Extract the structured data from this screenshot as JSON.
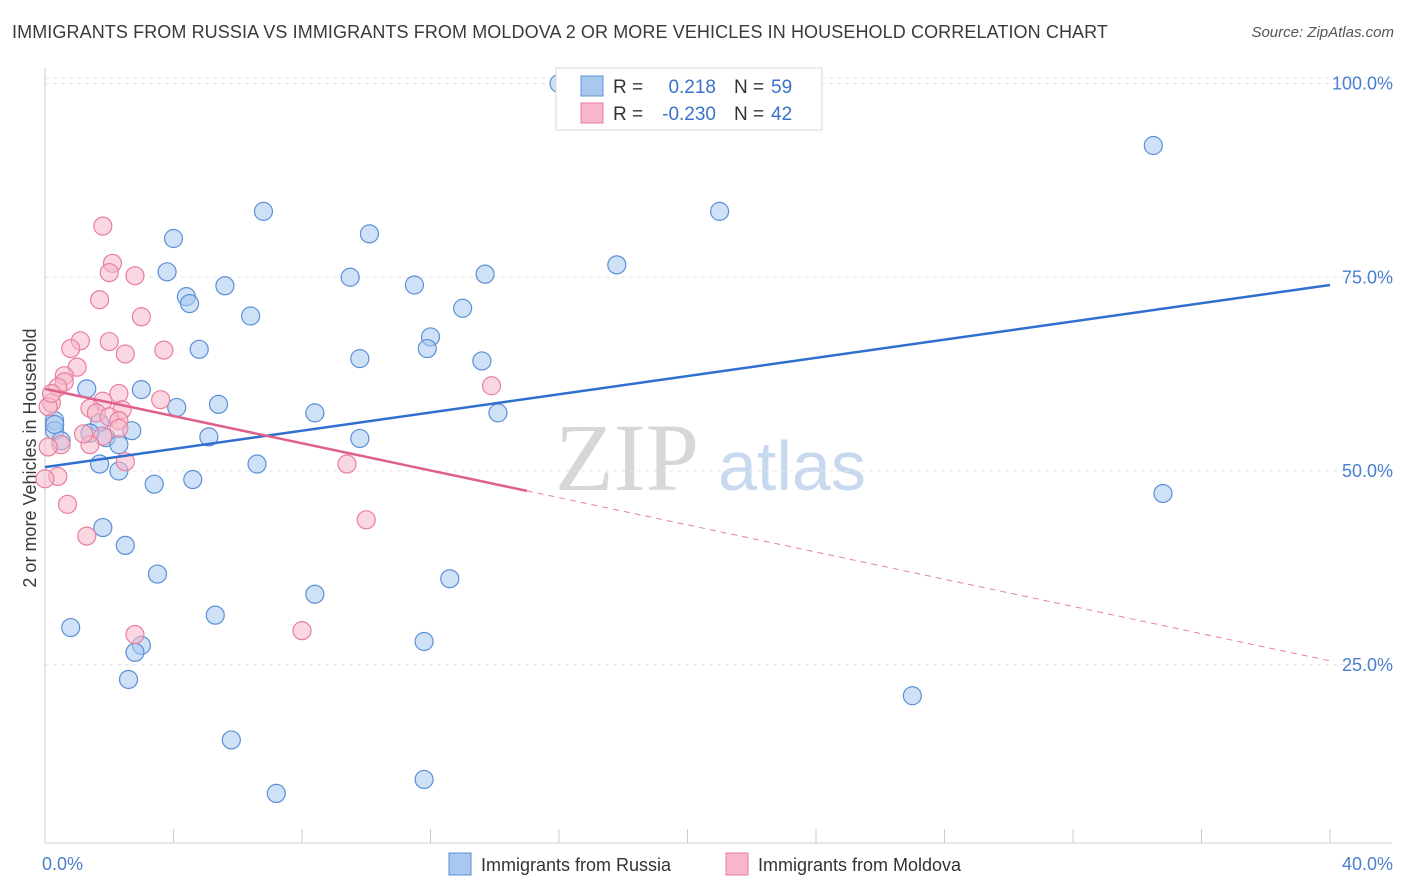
{
  "header": {
    "title": "IMMIGRANTS FROM RUSSIA VS IMMIGRANTS FROM MOLDOVA 2 OR MORE VEHICLES IN HOUSEHOLD CORRELATION CHART",
    "source": "Source: ZipAtlas.com"
  },
  "colors": {
    "russia_fill": "#a8c8f0",
    "russia_stroke": "#5b8fd6",
    "russia_line": "#2f6fcf",
    "moldova_fill": "#f7b6c9",
    "moldova_stroke": "#e77fa0",
    "moldova_line": "#e0608c"
  },
  "watermark": {
    "zip": "ZIP",
    "atlas": "atlas"
  },
  "legend": {
    "russia": {
      "r_label": "R =",
      "r_value": "0.218",
      "n_label": "N =",
      "n_value": "59"
    },
    "moldova": {
      "r_label": "R =",
      "r_value": "-0.230",
      "n_label": "N =",
      "n_value": "42"
    }
  },
  "chart_data": {
    "type": "scatter",
    "title": "IMMIGRANTS FROM RUSSIA VS IMMIGRANTS FROM MOLDOVA 2 OR MORE VEHICLES IN HOUSEHOLD CORRELATION CHART",
    "xlabel": "",
    "ylabel": "2 or more Vehicles in Household",
    "xlim": [
      0,
      40
    ],
    "ylim": [
      2,
      102
    ],
    "x_ticks": [
      0,
      40
    ],
    "x_tick_labels": [
      "0.0%",
      "40.0%"
    ],
    "y_ticks": [
      25,
      50,
      75,
      100
    ],
    "y_tick_labels": [
      "25.0%",
      "50.0%",
      "75.0%",
      "100.0%"
    ],
    "series": [
      {
        "name": "Immigrants from Russia",
        "trend": {
          "x": [
            0,
            40
          ],
          "y": [
            50.5,
            74.0
          ],
          "dashed_from": null
        },
        "points": [
          [
            16.0,
            100.0
          ],
          [
            34.5,
            92.0
          ],
          [
            6.8,
            83.5
          ],
          [
            21.0,
            83.5
          ],
          [
            10.1,
            80.6
          ],
          [
            4.0,
            80.0
          ],
          [
            3.8,
            75.7
          ],
          [
            9.5,
            75.0
          ],
          [
            13.7,
            75.4
          ],
          [
            11.5,
            74.0
          ],
          [
            5.6,
            73.9
          ],
          [
            4.4,
            72.5
          ],
          [
            4.5,
            71.6
          ],
          [
            13.0,
            71.0
          ],
          [
            6.4,
            70.0
          ],
          [
            12.0,
            67.3
          ],
          [
            11.9,
            65.8
          ],
          [
            4.8,
            65.7
          ],
          [
            9.8,
            64.5
          ],
          [
            13.6,
            64.2
          ],
          [
            17.8,
            76.6
          ],
          [
            1.3,
            60.6
          ],
          [
            3.0,
            60.5
          ],
          [
            5.4,
            58.6
          ],
          [
            4.1,
            58.2
          ],
          [
            8.4,
            57.5
          ],
          [
            14.1,
            57.5
          ],
          [
            0.3,
            56.5
          ],
          [
            1.7,
            56.2
          ],
          [
            0.3,
            55.2
          ],
          [
            1.4,
            54.9
          ],
          [
            2.7,
            55.2
          ],
          [
            1.9,
            54.3
          ],
          [
            5.1,
            54.4
          ],
          [
            9.8,
            54.2
          ],
          [
            0.5,
            53.9
          ],
          [
            2.3,
            53.4
          ],
          [
            1.7,
            50.9
          ],
          [
            6.6,
            50.9
          ],
          [
            2.3,
            50.0
          ],
          [
            3.4,
            48.3
          ],
          [
            4.6,
            48.9
          ],
          [
            34.8,
            47.1
          ],
          [
            1.8,
            42.7
          ],
          [
            2.5,
            40.4
          ],
          [
            3.5,
            36.7
          ],
          [
            12.6,
            36.1
          ],
          [
            8.4,
            34.1
          ],
          [
            5.3,
            31.4
          ],
          [
            0.8,
            29.8
          ],
          [
            11.8,
            28.0
          ],
          [
            3.0,
            27.5
          ],
          [
            2.8,
            26.6
          ],
          [
            27.0,
            21.0
          ],
          [
            2.6,
            23.1
          ],
          [
            5.8,
            15.3
          ],
          [
            11.8,
            10.2
          ],
          [
            7.2,
            8.4
          ],
          [
            0.3,
            56.0
          ]
        ]
      },
      {
        "name": "Immigrants from Moldova",
        "trend": {
          "x": [
            0,
            40
          ],
          "y": [
            60.6,
            25.5
          ],
          "dashed_from": 15.0
        },
        "points": [
          [
            1.8,
            81.6
          ],
          [
            2.1,
            76.8
          ],
          [
            2.0,
            75.6
          ],
          [
            2.8,
            75.2
          ],
          [
            1.7,
            72.1
          ],
          [
            3.0,
            69.9
          ],
          [
            1.1,
            66.8
          ],
          [
            2.0,
            66.7
          ],
          [
            0.8,
            65.8
          ],
          [
            3.7,
            65.6
          ],
          [
            2.5,
            65.1
          ],
          [
            1.0,
            63.4
          ],
          [
            0.6,
            62.3
          ],
          [
            0.6,
            61.5
          ],
          [
            0.4,
            60.8
          ],
          [
            13.9,
            61.0
          ],
          [
            2.3,
            60.0
          ],
          [
            3.6,
            59.2
          ],
          [
            1.8,
            59.0
          ],
          [
            0.2,
            58.8
          ],
          [
            0.1,
            58.3
          ],
          [
            1.4,
            58.1
          ],
          [
            2.4,
            57.9
          ],
          [
            1.6,
            57.5
          ],
          [
            2.0,
            57.0
          ],
          [
            2.3,
            56.5
          ],
          [
            2.3,
            55.5
          ],
          [
            1.8,
            54.5
          ],
          [
            1.4,
            53.4
          ],
          [
            0.5,
            53.4
          ],
          [
            0.1,
            53.1
          ],
          [
            2.5,
            51.2
          ],
          [
            9.4,
            50.9
          ],
          [
            0.4,
            49.3
          ],
          [
            0.0,
            49.0
          ],
          [
            0.7,
            45.7
          ],
          [
            10.0,
            43.7
          ],
          [
            1.3,
            41.6
          ],
          [
            2.8,
            28.9
          ],
          [
            8.0,
            29.4
          ],
          [
            0.2,
            60.0
          ],
          [
            1.2,
            54.8
          ]
        ]
      }
    ],
    "legend_position": "top-center",
    "bottom_legend": [
      "Immigrants from Russia",
      "Immigrants from Moldova"
    ],
    "grid": true
  }
}
